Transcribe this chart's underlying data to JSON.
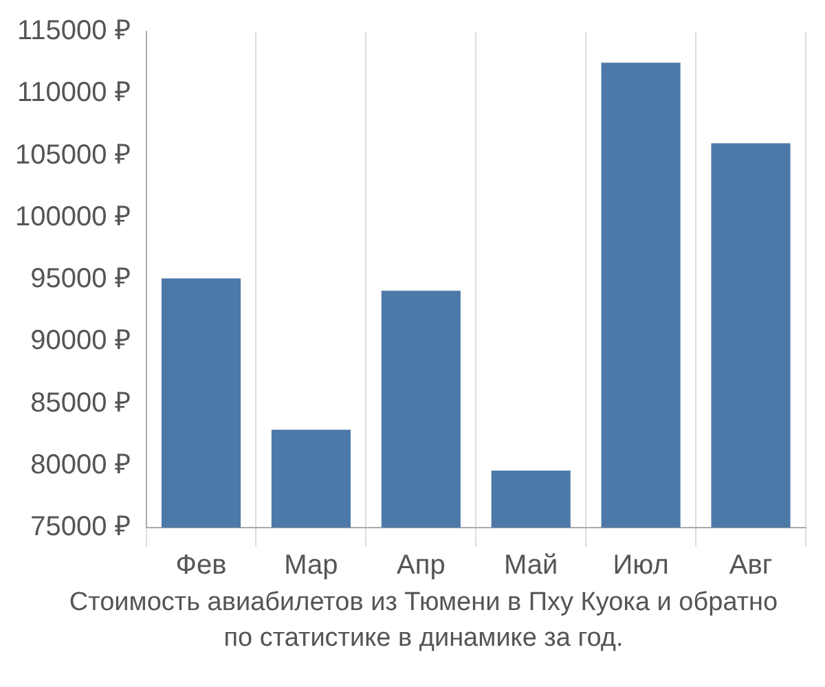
{
  "chart_data": {
    "type": "bar",
    "categories": [
      "Фев",
      "Мар",
      "Апр",
      "Май",
      "Июл",
      "Авг"
    ],
    "values": [
      95100,
      82900,
      94100,
      79600,
      112500,
      106000
    ],
    "color": "#4d79a8",
    "ylim": [
      75000,
      115000
    ],
    "yticks": [
      {
        "value": 75000,
        "label": "75000 ₽"
      },
      {
        "value": 80000,
        "label": "80000 ₽"
      },
      {
        "value": 85000,
        "label": "85000 ₽"
      },
      {
        "value": 90000,
        "label": "90000 ₽"
      },
      {
        "value": 95000,
        "label": "95000 ₽"
      },
      {
        "value": 100000,
        "label": "100000 ₽"
      },
      {
        "value": 105000,
        "label": "105000 ₽"
      },
      {
        "value": 110000,
        "label": "110000 ₽"
      },
      {
        "value": 115000,
        "label": "115000 ₽"
      }
    ],
    "grid": "x",
    "annotations": [
      "Стоимость авиабилетов из Тюмени в Пху Куока и обратно",
      "по статистике в динамике за год."
    ]
  }
}
